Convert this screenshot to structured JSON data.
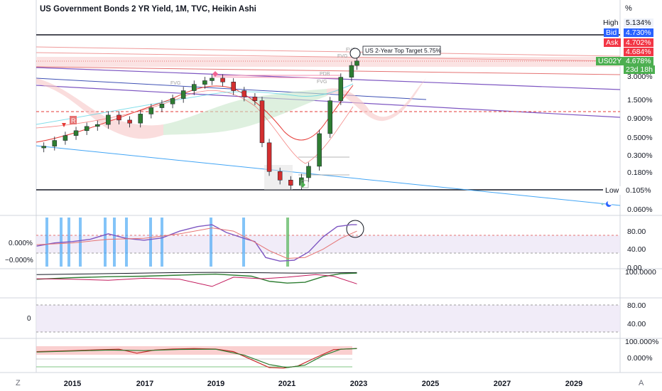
{
  "header": {
    "title": "US Government Bonds 2 YR Yield, 1M, TVC, Heikin Ashi",
    "percent_symbol": "%"
  },
  "price_labels": {
    "high": {
      "label": "High",
      "value": "5.134%"
    },
    "bid": {
      "label": "Bid",
      "value": "4.730%"
    },
    "ask": {
      "label": "Ask",
      "value": "4.702%"
    },
    "other": {
      "value": "4.684%"
    },
    "symbol": {
      "label": "US02Y",
      "value": "4.678%",
      "countdown": "23d 18h"
    },
    "low": {
      "label": "Low",
      "value": "0.105%"
    }
  },
  "annotation": {
    "text": "US 2-Year Top Target 5.75%"
  },
  "marks": {
    "fvg": "FVG",
    "pdb": "PDB",
    "r": "R"
  },
  "footer": {
    "left": "Z",
    "right": "A"
  },
  "colors": {
    "up": "#26a69a",
    "candle_up": "#2e7d32",
    "candle_down": "#d32f2f",
    "ichimoku_red": "#f6c7c7",
    "ichimoku_green": "#c8e6c9",
    "bid": "#2962ff",
    "ask": "#f23645",
    "symbol": "#4caf50",
    "rsi_line": "#7e57c2",
    "signal": "#e57373",
    "highlight": "#42a5f5"
  },
  "chart_data": [
    {
      "type": "candlestick",
      "title": "US Government Bonds 2 YR Yield, 1M, TVC, Heikin Ashi",
      "yscale": "log",
      "x_ticks": [
        "2015",
        "2017",
        "2019",
        "2021",
        "2023",
        "2025",
        "2027",
        "2029"
      ],
      "y_ticks": [
        "3.000%",
        "1.500%",
        "0.900%",
        "0.500%",
        "0.300%",
        "0.180%",
        "0.060%"
      ],
      "ylim": [
        0.05,
        7.5
      ],
      "series": [
        {
          "name": "Heikin Ashi close",
          "x": [
            2014.2,
            2014.5,
            2014.8,
            2015.1,
            2015.4,
            2015.7,
            2016.0,
            2016.3,
            2016.6,
            2016.9,
            2017.2,
            2017.5,
            2017.8,
            2018.1,
            2018.4,
            2018.7,
            2018.9,
            2019.2,
            2019.5,
            2019.8,
            2020.1,
            2020.3,
            2020.5,
            2020.8,
            2021.1,
            2021.4,
            2021.6,
            2021.9,
            2022.2,
            2022.5,
            2022.8,
            2022.95
          ],
          "y": [
            0.38,
            0.45,
            0.52,
            0.6,
            0.68,
            0.72,
            0.95,
            0.82,
            0.75,
            0.98,
            1.18,
            1.32,
            1.55,
            1.95,
            2.35,
            2.62,
            2.82,
            2.52,
            1.95,
            1.62,
            1.45,
            0.42,
            0.18,
            0.14,
            0.12,
            0.15,
            0.21,
            0.55,
            1.45,
            2.9,
            4.1,
            4.68
          ]
        }
      ]
    },
    {
      "type": "line",
      "y_ticks": [
        "80.00",
        "40.00",
        "0.00"
      ],
      "left_labels": [
        "0.000%",
        "−0.000%"
      ],
      "series": [
        {
          "name": "",
          "x": [
            2014.0,
            2014.5,
            2015.0,
            2015.5,
            2016.0,
            2016.5,
            2017.0,
            2017.5,
            2018.0,
            2018.5,
            2018.9,
            2019.3,
            2019.8,
            2020.1,
            2020.4,
            2020.8,
            2021.2,
            2021.6,
            2022.0,
            2022.4,
            2022.8,
            2022.95
          ],
          "y": [
            45,
            52,
            55,
            60,
            72,
            62,
            58,
            63,
            78,
            88,
            92,
            75,
            62,
            55,
            20,
            12,
            14,
            32,
            65,
            88,
            92,
            92
          ]
        },
        {
          "name": "",
          "x": [
            2014.0,
            2015.0,
            2016.0,
            2017.0,
            2018.0,
            2018.9,
            2019.5,
            2020.0,
            2020.5,
            2021.0,
            2021.5,
            2022.0,
            2022.5,
            2022.95
          ],
          "y": [
            48,
            52,
            60,
            62,
            72,
            85,
            78,
            58,
            35,
            18,
            20,
            38,
            62,
            78
          ]
        }
      ]
    },
    {
      "type": "line",
      "y_ticks": [
        "100.0000"
      ],
      "series": [
        {
          "name": "",
          "x": [
            2014.0,
            2016.0,
            2018.0,
            2019.0,
            2020.5,
            2021.5,
            2022.95
          ],
          "y": [
            88,
            92,
            96,
            97,
            95,
            94,
            96
          ]
        },
        {
          "name": "",
          "x": [
            2014.0,
            2015.0,
            2016.0,
            2017.0,
            2018.0,
            2019.0,
            2020.0,
            2020.5,
            2021.0,
            2021.5,
            2022.0,
            2022.5,
            2022.95
          ],
          "y": [
            70,
            76,
            80,
            82,
            86,
            90,
            82,
            62,
            55,
            58,
            80,
            92,
            94
          ]
        },
        {
          "name": "",
          "x": [
            2014.0,
            2015.0,
            2016.0,
            2017.0,
            2018.0,
            2018.9,
            2019.5,
            2020.3,
            2021.0,
            2021.8,
            2022.3,
            2022.95
          ],
          "y": [
            72,
            70,
            66,
            74,
            70,
            42,
            78,
            72,
            78,
            88,
            82,
            52
          ]
        }
      ]
    },
    {
      "type": "line",
      "y_ticks": [
        "80.00",
        "40.00"
      ],
      "left_labels": [
        "0"
      ],
      "series": []
    },
    {
      "type": "line",
      "y_ticks": [
        "100.000%",
        "0.000%"
      ],
      "series": [
        {
          "name": "",
          "x": [
            2014.0,
            2015.0,
            2015.8,
            2016.3,
            2016.8,
            2017.3,
            2017.8,
            2018.4,
            2019.0,
            2019.5,
            2020.0,
            2020.5,
            2020.9,
            2021.3,
            2021.8,
            2022.3,
            2022.95
          ],
          "y": [
            80,
            85,
            90,
            92,
            72,
            88,
            93,
            95,
            93,
            80,
            40,
            0,
            -3,
            8,
            50,
            90,
            96
          ]
        },
        {
          "name": "",
          "x": [
            2014.0,
            2015.0,
            2016.0,
            2017.0,
            2018.0,
            2019.0,
            2019.8,
            2020.5,
            2021.0,
            2021.5,
            2022.0,
            2022.5,
            2022.95
          ],
          "y": [
            78,
            83,
            88,
            85,
            91,
            92,
            62,
            15,
            0,
            12,
            60,
            92,
            95
          ]
        }
      ]
    }
  ]
}
